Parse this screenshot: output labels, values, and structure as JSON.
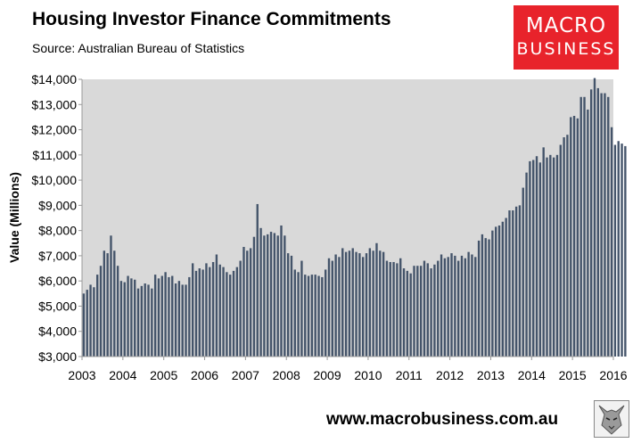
{
  "header": {
    "title": "Housing Investor Finance Commitments",
    "subtitle": "Source: Australian Bureau of Statistics"
  },
  "logo": {
    "line1": "MACRO",
    "line2": "BUSINESS",
    "color": "#e8232b"
  },
  "footer": {
    "url": "www.macrobusiness.com.au",
    "emblem_icon": "wolf-icon"
  },
  "chart_data": {
    "type": "bar",
    "title": "Housing Investor Finance Commitments",
    "subtitle": "Source: Australian Bureau of Statistics",
    "xlabel": "",
    "ylabel": "Value (Millions)",
    "ylim": [
      3000,
      14000
    ],
    "xlim": [
      2003,
      2016
    ],
    "y_ticks": [
      3000,
      4000,
      5000,
      6000,
      7000,
      8000,
      9000,
      10000,
      11000,
      12000,
      13000,
      14000
    ],
    "y_tick_labels": [
      "$3,000",
      "$4,000",
      "$5,000",
      "$6,000",
      "$7,000",
      "$8,000",
      "$9,000",
      "$10,000",
      "$11,000",
      "$12,000",
      "$13,000",
      "$14,000"
    ],
    "x_tick_labels": [
      "2003",
      "2004",
      "2005",
      "2006",
      "2007",
      "2008",
      "2009",
      "2010",
      "2011",
      "2012",
      "2013",
      "2014",
      "2015",
      "2016"
    ],
    "grid": false,
    "plot_background": "#d9d9d9",
    "bar_color": "#44546a",
    "start": "2003-01",
    "frequency": "monthly",
    "values": [
      5500,
      5650,
      5850,
      5750,
      6250,
      6600,
      7200,
      7100,
      7800,
      7200,
      6600,
      6000,
      5950,
      6200,
      6100,
      6050,
      5700,
      5800,
      5900,
      5850,
      5700,
      6250,
      6100,
      6200,
      6350,
      6150,
      6200,
      5900,
      6000,
      5850,
      5850,
      6150,
      6700,
      6400,
      6500,
      6450,
      6700,
      6550,
      6750,
      7050,
      6650,
      6550,
      6350,
      6250,
      6400,
      6550,
      6800,
      7350,
      7200,
      7300,
      7750,
      9050,
      8100,
      7800,
      7850,
      7950,
      7900,
      7800,
      8200,
      7800,
      7100,
      7000,
      6450,
      6350,
      6800,
      6250,
      6200,
      6250,
      6250,
      6200,
      6150,
      6450,
      6900,
      6800,
      7050,
      6950,
      7300,
      7150,
      7200,
      7300,
      7150,
      7100,
      6950,
      7100,
      7300,
      7200,
      7500,
      7200,
      7150,
      6800,
      6750,
      6750,
      6700,
      6900,
      6500,
      6400,
      6300,
      6600,
      6600,
      6600,
      6800,
      6700,
      6500,
      6650,
      6800,
      7050,
      6900,
      6950,
      7100,
      7000,
      6800,
      7000,
      6900,
      7150,
      7050,
      6950,
      7600,
      7850,
      7700,
      7650,
      8000,
      8150,
      8200,
      8350,
      8500,
      8800,
      8800,
      8950,
      9000,
      9700,
      10300,
      10750,
      10800,
      10950,
      10700,
      11300,
      10900,
      11000,
      10900,
      11000,
      11400,
      11700,
      11800,
      12500,
      12550,
      12450,
      13300,
      13300,
      12800,
      13600,
      14050,
      13650,
      13450,
      13450,
      13300,
      12100,
      11400,
      11550,
      11450,
      11350
    ]
  }
}
